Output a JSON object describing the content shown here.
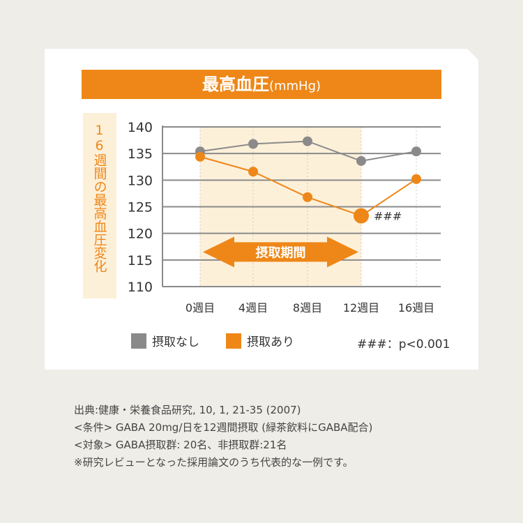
{
  "title": {
    "main": "最高血圧",
    "unit": "(mmHg)"
  },
  "y_axis_label": "16週間の最高血圧変化",
  "colors": {
    "orange": "#ee8718",
    "gray": "#8a8a8a",
    "band": "#fdf0d9"
  },
  "chart_data": {
    "type": "line",
    "title": "最高血圧(mmHg)",
    "ylabel": "16週間の最高血圧変化",
    "categories": [
      "0週目",
      "4週目",
      "8週目",
      "12週目",
      "16週目"
    ],
    "ylim": [
      110,
      140
    ],
    "yticks": [
      140,
      135,
      130,
      125,
      120,
      115,
      110
    ],
    "grid": true,
    "series": [
      {
        "name": "摂取なし",
        "color": "#8a8a8a",
        "values": [
          135.4,
          136.8,
          137.3,
          133.6,
          135.4
        ]
      },
      {
        "name": "摂取あり",
        "color": "#ee8718",
        "values": [
          134.4,
          131.6,
          126.8,
          123.3,
          130.2
        ]
      }
    ],
    "intake_period": {
      "label": "摂取期間",
      "from": "0週目",
      "to": "12週目"
    },
    "annotation": {
      "text": "###",
      "category": "12週目",
      "series": "摂取あり"
    },
    "legend_position": "bottom"
  },
  "legend": {
    "none": "摂取なし",
    "with": "摂取あり",
    "pnote": "###：p<0.001"
  },
  "source": [
    "出典:健康・栄養食品研究, 10, 1, 21-35 (2007)",
    "<条件> GABA 20mg/日を12週間摂取 (緑茶飲料にGABA配合)",
    "<対象> GABA摂取群: 20名、非摂取群:21名",
    "※研究レビューとなった採用論文のうち代表的な一例です。"
  ]
}
